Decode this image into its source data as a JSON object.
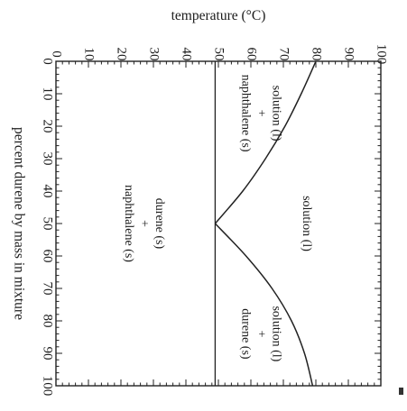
{
  "chart_data": {
    "type": "line",
    "title": "",
    "xlabel": "percent durene by mass in mixture",
    "ylabel": "temperature (°C)",
    "xlim": [
      0,
      100
    ],
    "ylim": [
      0,
      100
    ],
    "x_ticks": [
      "0",
      "10",
      "20",
      "30",
      "40",
      "50",
      "60",
      "70",
      "80",
      "90",
      "100"
    ],
    "y_ticks": [
      "0",
      "10",
      "20",
      "30",
      "40",
      "50",
      "60",
      "70",
      "80",
      "90",
      "100"
    ],
    "orientation": "rotated-90-clockwise",
    "series": [
      {
        "x": [
          0,
          10,
          20,
          30,
          40,
          50
        ],
        "y": [
          80,
          75.5,
          70.5,
          64.5,
          57.5,
          49
        ]
      },
      {
        "x": [
          50,
          60,
          70,
          80,
          90,
          100
        ],
        "y": [
          49,
          58.5,
          66.5,
          72.5,
          76.5,
          79
        ]
      },
      {
        "x": [
          0,
          100
        ],
        "y": [
          49,
          49
        ]
      }
    ],
    "regions": [
      {
        "lines": [
          "solution (l)",
          "+",
          "naphthalene (s)"
        ],
        "x": 16,
        "y": 63
      },
      {
        "lines": [
          "solution (l)"
        ],
        "x": 50,
        "y": 77
      },
      {
        "lines": [
          "solution (l)",
          "+",
          "durene (s)"
        ],
        "x": 84,
        "y": 63
      },
      {
        "lines": [
          "durene (s)",
          "+",
          "naphthalene (s)"
        ],
        "x": 50,
        "y": 27
      }
    ]
  }
}
